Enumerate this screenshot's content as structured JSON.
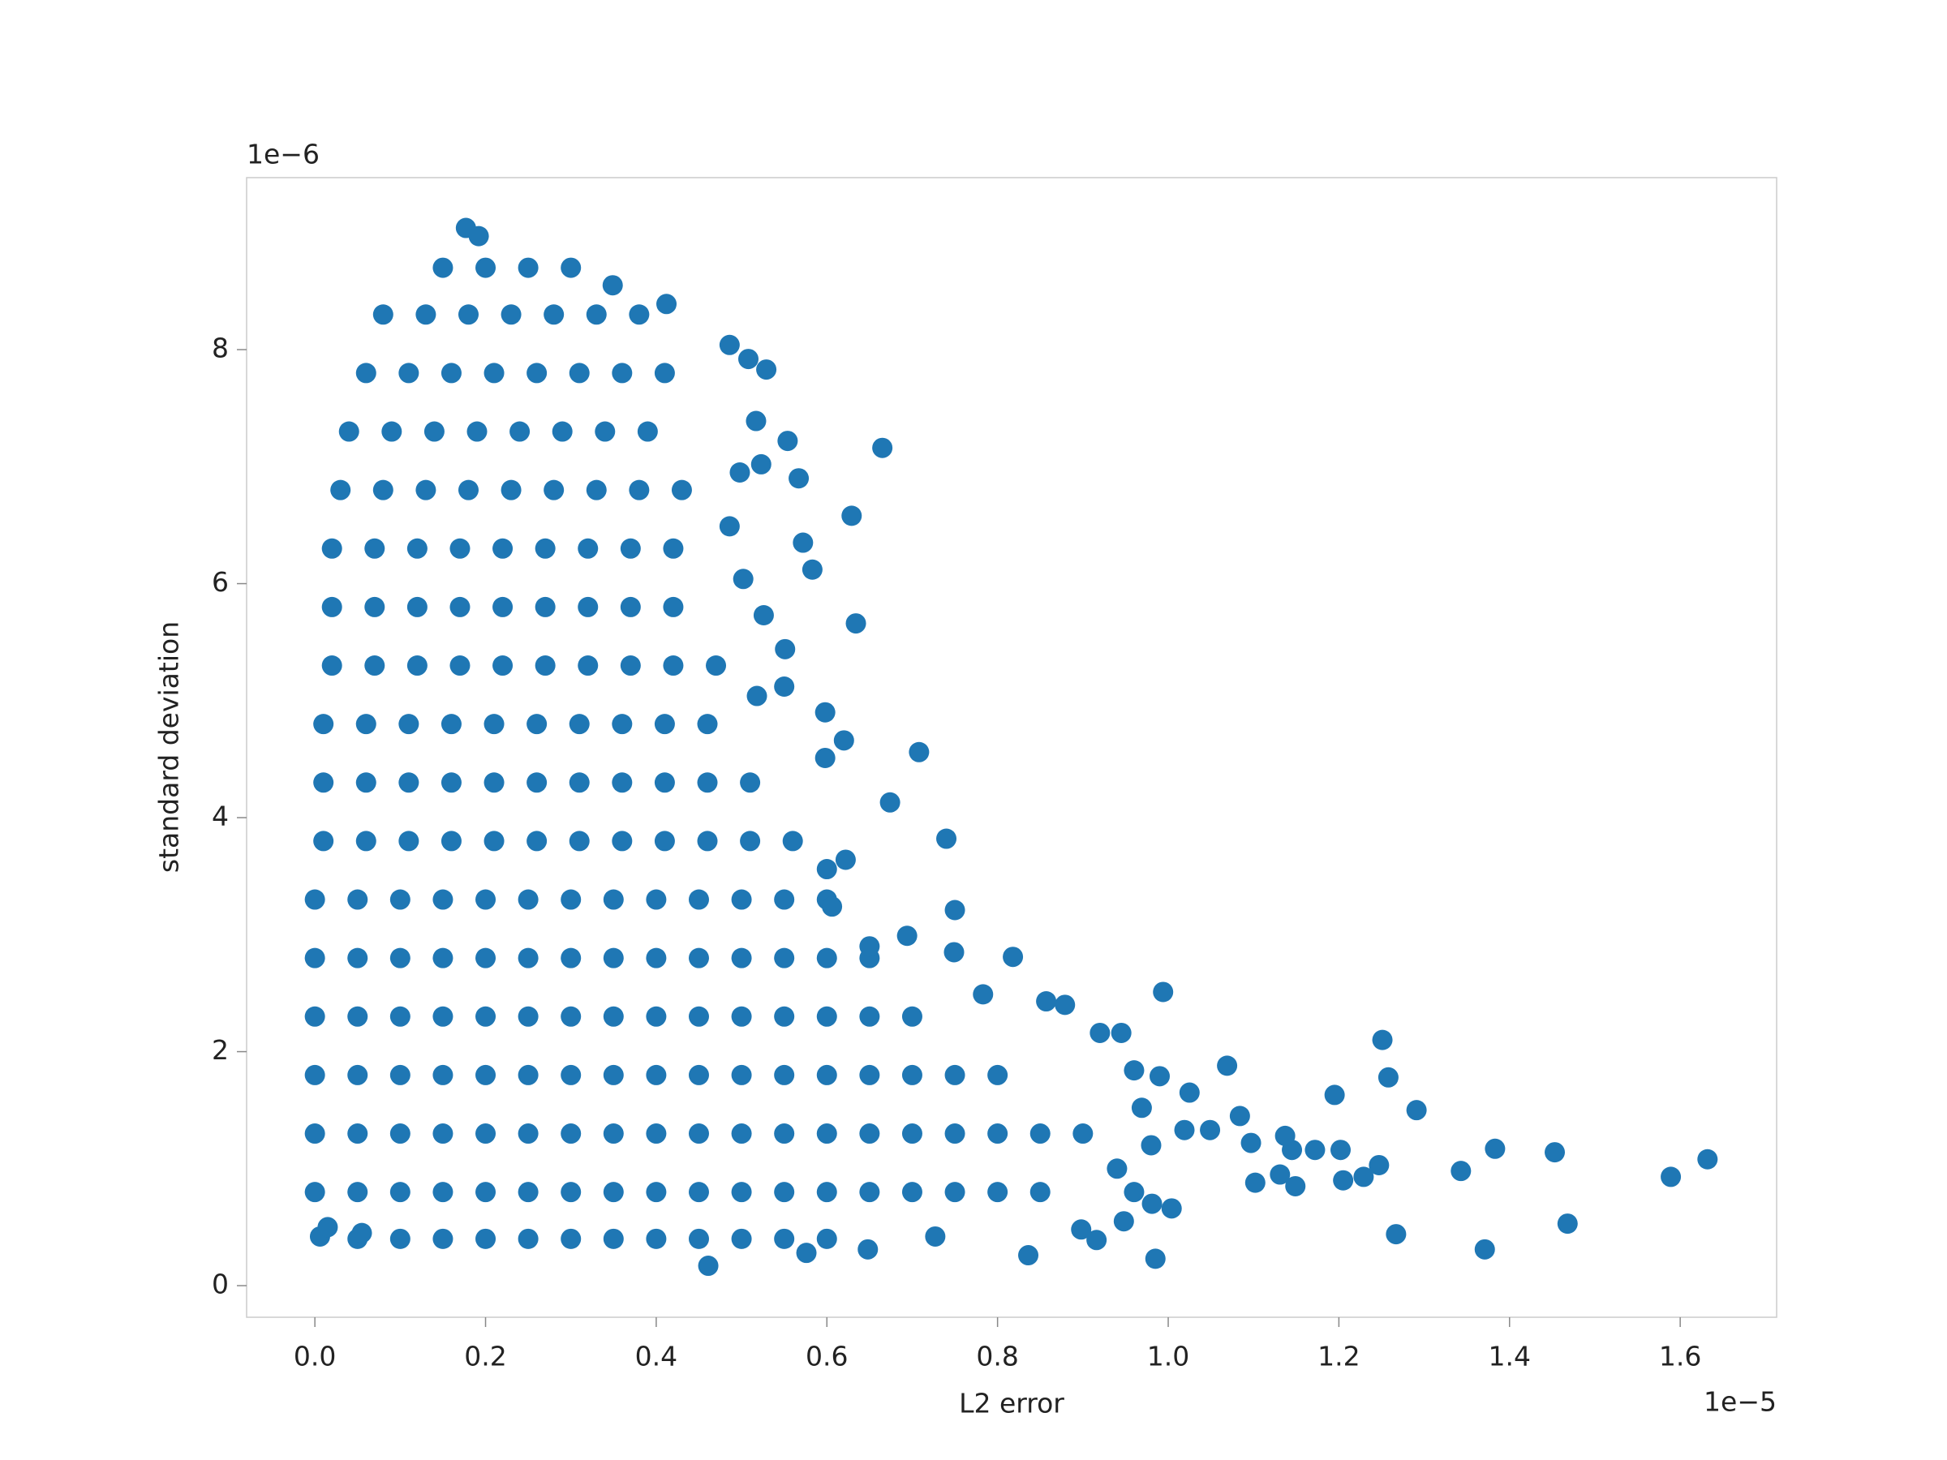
{
  "chart_data": {
    "type": "scatter",
    "x_label": "L2 error",
    "y_label": "standard deviation",
    "x_offset_label": "1e−5",
    "y_offset_label": "1e−6",
    "color": "#1f77b4",
    "xlim": [
      -0.08,
      1.713
    ],
    "ylim": [
      -0.27,
      9.47
    ],
    "xticks": [
      {
        "value": 0,
        "label": "0.0"
      },
      0.2,
      0.4,
      0.6,
      0.8,
      {
        "value": 1,
        "label": "1.0"
      },
      1.2,
      1.4,
      1.6
    ],
    "yticks": [
      0,
      2,
      4,
      6,
      8
    ],
    "x": [
      0.15,
      0.2,
      0.25,
      0.3,
      0.08,
      0.13,
      0.18,
      0.23,
      0.28,
      0.33,
      0.38,
      0.06,
      0.11,
      0.16,
      0.21,
      0.26,
      0.31,
      0.36,
      0.41,
      0.04,
      0.09,
      0.14,
      0.19,
      0.24,
      0.29,
      0.34,
      0.39,
      0.03,
      0.08,
      0.13,
      0.18,
      0.23,
      0.28,
      0.33,
      0.38,
      0.43,
      0.02,
      0.07,
      0.12,
      0.17,
      0.22,
      0.27,
      0.32,
      0.37,
      0.42,
      0.02,
      0.07,
      0.12,
      0.17,
      0.22,
      0.27,
      0.32,
      0.37,
      0.42,
      0.02,
      0.07,
      0.12,
      0.17,
      0.22,
      0.27,
      0.32,
      0.37,
      0.42,
      0.47,
      0.01,
      0.06,
      0.11,
      0.16,
      0.21,
      0.26,
      0.31,
      0.36,
      0.41,
      0.46,
      0.01,
      0.06,
      0.11,
      0.16,
      0.21,
      0.26,
      0.31,
      0.36,
      0.41,
      0.46,
      0.51,
      0.01,
      0.06,
      0.11,
      0.16,
      0.21,
      0.26,
      0.31,
      0.36,
      0.41,
      0.46,
      0.51,
      0.56,
      0,
      0.05,
      0.1,
      0.15,
      0.2,
      0.25,
      0.3,
      0.35,
      0.4,
      0.45,
      0.5,
      0.55,
      0.6,
      0,
      0.05,
      0.1,
      0.15,
      0.2,
      0.25,
      0.3,
      0.35,
      0.4,
      0.45,
      0.5,
      0.55,
      0.6,
      0.65,
      0,
      0.05,
      0.1,
      0.15,
      0.2,
      0.25,
      0.3,
      0.35,
      0.4,
      0.45,
      0.5,
      0.55,
      0.6,
      0.65,
      0.7,
      0,
      0.05,
      0.1,
      0.15,
      0.2,
      0.25,
      0.3,
      0.35,
      0.4,
      0.45,
      0.5,
      0.55,
      0.6,
      0.65,
      0.7,
      0.75,
      0.8,
      0,
      0.05,
      0.1,
      0.15,
      0.2,
      0.25,
      0.3,
      0.35,
      0.4,
      0.45,
      0.5,
      0.55,
      0.6,
      0.65,
      0.7,
      0.75,
      0.8,
      0.85,
      0.9,
      0,
      0.05,
      0.1,
      0.15,
      0.2,
      0.25,
      0.3,
      0.35,
      0.4,
      0.45,
      0.5,
      0.55,
      0.6,
      0.65,
      0.7,
      0.75,
      0.8,
      0.85,
      0.05,
      0.1,
      0.15,
      0.2,
      0.25,
      0.3,
      0.35,
      0.4,
      0.45,
      0.5,
      0.55,
      0.6,
      1.589,
      1.632,
      1.468,
      1.453,
      1.383,
      1.371,
      1.343,
      1.291,
      1.267,
      1.258,
      1.251,
      1.247,
      1.229,
      1.205,
      1.202,
      1.195,
      1.172,
      1.149,
      1.145,
      1.137,
      1.131,
      1.102,
      1.097,
      1.084,
      1.069,
      1.025,
      0.994,
      0.985,
      0.981,
      0.945,
      0.92,
      0.898,
      0.879,
      0.836,
      0.818,
      0.749,
      0.75,
      0.74,
      0.708,
      0.674,
      0.665,
      0.629,
      0.634,
      0.62,
      0.598,
      0.598,
      0.622,
      0.583,
      0.572,
      0.567,
      0.554,
      0.529,
      0.508,
      0.486,
      0.551,
      0.55,
      0.526,
      0.518,
      0.502,
      0.486,
      0.523,
      0.498,
      0.517,
      0.412,
      0.349,
      0.177,
      0.192,
      0.6,
      0.65,
      0.694,
      0.606,
      0.783,
      0.857,
      0.96,
      0.99,
      0.969,
      1.049,
      1.019,
      1.004,
      0.948,
      0.916,
      0.727,
      0.648,
      0.576,
      0.461,
      0.006,
      0.015,
      0.055,
      0.94,
      0.98,
      0.96
    ],
    "values": [
      8.7,
      8.7,
      8.7,
      8.7,
      8.3,
      8.3,
      8.3,
      8.3,
      8.3,
      8.3,
      8.3,
      7.8,
      7.8,
      7.8,
      7.8,
      7.8,
      7.8,
      7.8,
      7.8,
      7.3,
      7.3,
      7.3,
      7.3,
      7.3,
      7.3,
      7.3,
      7.3,
      6.8,
      6.8,
      6.8,
      6.8,
      6.8,
      6.8,
      6.8,
      6.8,
      6.8,
      6.3,
      6.3,
      6.3,
      6.3,
      6.3,
      6.3,
      6.3,
      6.3,
      6.3,
      5.8,
      5.8,
      5.8,
      5.8,
      5.8,
      5.8,
      5.8,
      5.8,
      5.8,
      5.3,
      5.3,
      5.3,
      5.3,
      5.3,
      5.3,
      5.3,
      5.3,
      5.3,
      5.3,
      4.8,
      4.8,
      4.8,
      4.8,
      4.8,
      4.8,
      4.8,
      4.8,
      4.8,
      4.8,
      4.3,
      4.3,
      4.3,
      4.3,
      4.3,
      4.3,
      4.3,
      4.3,
      4.3,
      4.3,
      4.3,
      3.8,
      3.8,
      3.8,
      3.8,
      3.8,
      3.8,
      3.8,
      3.8,
      3.8,
      3.8,
      3.8,
      3.8,
      3.3,
      3.3,
      3.3,
      3.3,
      3.3,
      3.3,
      3.3,
      3.3,
      3.3,
      3.3,
      3.3,
      3.3,
      3.3,
      2.8,
      2.8,
      2.8,
      2.8,
      2.8,
      2.8,
      2.8,
      2.8,
      2.8,
      2.8,
      2.8,
      2.8,
      2.8,
      2.8,
      2.3,
      2.3,
      2.3,
      2.3,
      2.3,
      2.3,
      2.3,
      2.3,
      2.3,
      2.3,
      2.3,
      2.3,
      2.3,
      2.3,
      2.3,
      1.8,
      1.8,
      1.8,
      1.8,
      1.8,
      1.8,
      1.8,
      1.8,
      1.8,
      1.8,
      1.8,
      1.8,
      1.8,
      1.8,
      1.8,
      1.8,
      1.8,
      1.3,
      1.3,
      1.3,
      1.3,
      1.3,
      1.3,
      1.3,
      1.3,
      1.3,
      1.3,
      1.3,
      1.3,
      1.3,
      1.3,
      1.3,
      1.3,
      1.3,
      1.3,
      1.3,
      0.8,
      0.8,
      0.8,
      0.8,
      0.8,
      0.8,
      0.8,
      0.8,
      0.8,
      0.8,
      0.8,
      0.8,
      0.8,
      0.8,
      0.8,
      0.8,
      0.8,
      0.8,
      0.4,
      0.4,
      0.4,
      0.4,
      0.4,
      0.4,
      0.4,
      0.4,
      0.4,
      0.4,
      0.4,
      0.4,
      0.93,
      1.08,
      0.53,
      1.14,
      1.17,
      0.31,
      0.98,
      1.5,
      0.44,
      1.78,
      2.1,
      1.03,
      0.93,
      0.9,
      1.16,
      1.63,
      1.16,
      0.85,
      1.16,
      1.28,
      0.95,
      0.88,
      1.22,
      1.45,
      1.88,
      1.65,
      2.51,
      0.23,
      0.7,
      2.16,
      2.16,
      0.48,
      2.4,
      0.26,
      2.81,
      2.85,
      3.21,
      3.82,
      4.56,
      4.13,
      7.16,
      6.58,
      5.66,
      4.66,
      4.51,
      4.9,
      3.64,
      6.12,
      6.35,
      6.9,
      7.22,
      7.83,
      7.92,
      8.04,
      5.44,
      5.12,
      5.73,
      5.04,
      6.04,
      6.49,
      7.02,
      6.95,
      7.39,
      8.39,
      8.55,
      9.04,
      8.97,
      3.56,
      2.9,
      2.99,
      3.24,
      2.49,
      2.43,
      1.84,
      1.79,
      1.52,
      1.33,
      1.33,
      0.66,
      0.55,
      0.39,
      0.42,
      0.31,
      0.28,
      0.17,
      0.42,
      0.5,
      0.45,
      1.0,
      1.2,
      0.8
    ]
  }
}
